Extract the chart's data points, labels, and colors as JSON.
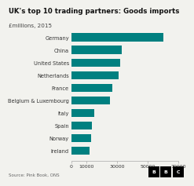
{
  "title": "UK's top 10 trading partners: Goods imports",
  "subtitle": "£millions, 2015",
  "source": "Source: Pink Book, ONS",
  "categories": [
    "Ireland",
    "Norway",
    "Spain",
    "Italy",
    "Belgium & Luxembourg",
    "France",
    "Netherlands",
    "United States",
    "China",
    "Germany"
  ],
  "values": [
    12000,
    13000,
    13500,
    15000,
    25000,
    27000,
    31000,
    32000,
    33000,
    60000
  ],
  "bar_color": "#008080",
  "xlim": [
    0,
    70000
  ],
  "xticks": [
    0,
    10000,
    30000,
    50000,
    70000
  ],
  "xtick_labels": [
    "0",
    "10000",
    "30000",
    "50000",
    "70000"
  ],
  "background_color": "#f2f2ee",
  "title_fontsize": 6.2,
  "subtitle_fontsize": 5.2,
  "tick_fontsize": 4.5,
  "label_fontsize": 4.8,
  "source_fontsize": 4.0
}
